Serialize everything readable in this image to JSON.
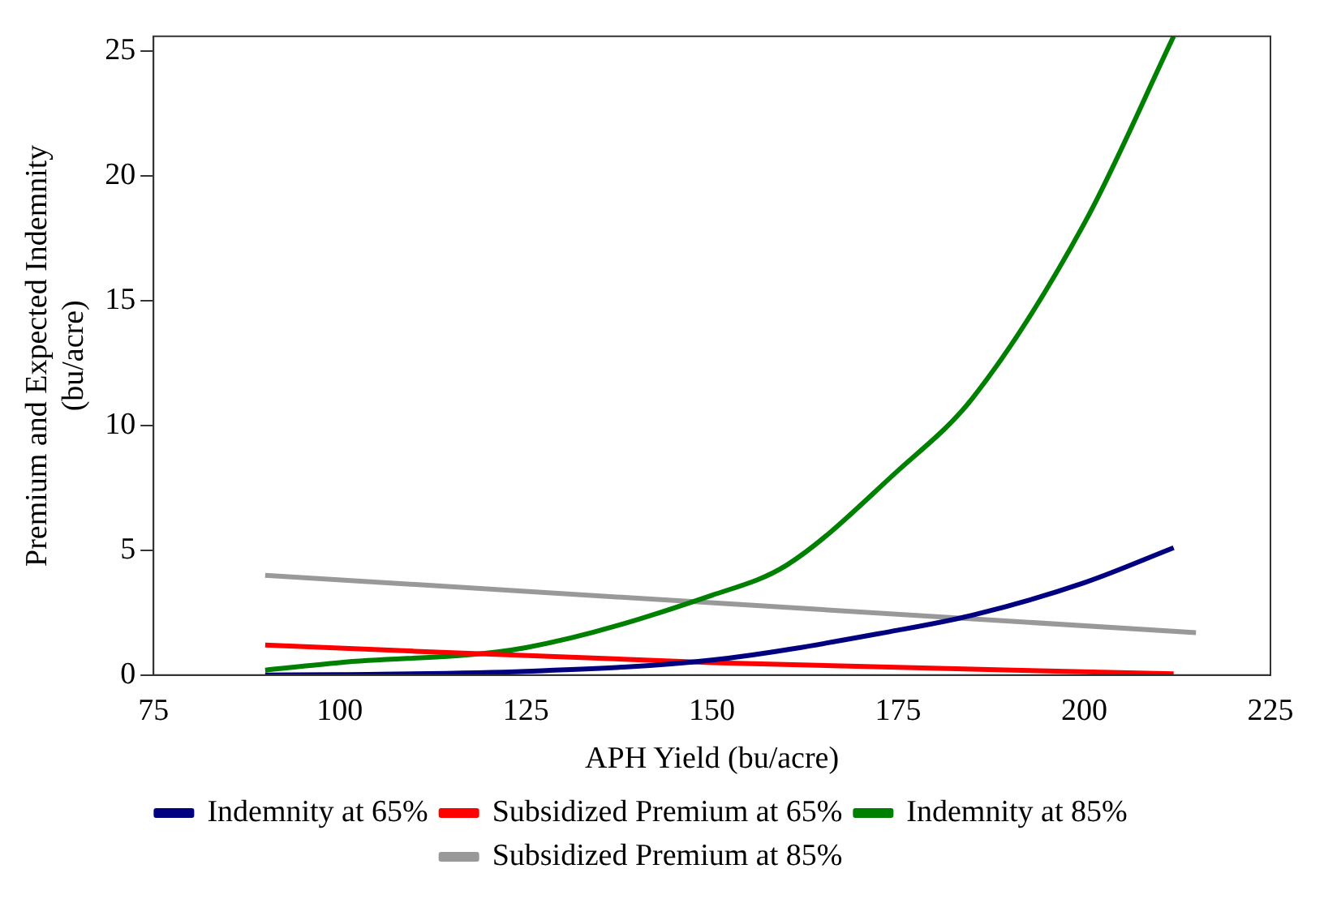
{
  "chart_data": {
    "type": "line",
    "xlabel": "APH Yield (bu/acre)",
    "ylabel": "Premium and Expected Indemnity\n(bu/acre)",
    "xlim": [
      75,
      225
    ],
    "xticks": [
      75,
      100,
      125,
      150,
      175,
      200,
      225
    ],
    "ylim": [
      0,
      25.6
    ],
    "yticks": [
      0,
      5,
      10,
      15,
      20,
      25
    ],
    "grid": false,
    "legend": "bottom",
    "marker": "none",
    "line_style": "solid",
    "series": [
      {
        "name": "Indemnity at 65%",
        "color": "#000080",
        "x": [
          90,
          100,
          125,
          150,
          175,
          185,
          200,
          212
        ],
        "values": [
          0,
          0.02,
          0.15,
          0.6,
          1.8,
          2.4,
          3.7,
          5.1
        ]
      },
      {
        "name": "Subsidized Premium at 65%",
        "color": "#ff0000",
        "x": [
          90,
          150,
          212
        ],
        "values": [
          1.2,
          0.5,
          0.05
        ]
      },
      {
        "name": "Indemnity at 85%",
        "color": "#008000",
        "x": [
          90,
          100,
          125,
          150,
          160,
          175,
          185,
          200,
          212
        ],
        "values": [
          0.2,
          0.5,
          1.1,
          3.2,
          4.4,
          8.2,
          11.1,
          18.1,
          25.6
        ]
      },
      {
        "name": "Subsidized Premium at 85%",
        "color": "#999999",
        "x": [
          90,
          215
        ],
        "values": [
          4,
          1.7
        ]
      }
    ]
  }
}
